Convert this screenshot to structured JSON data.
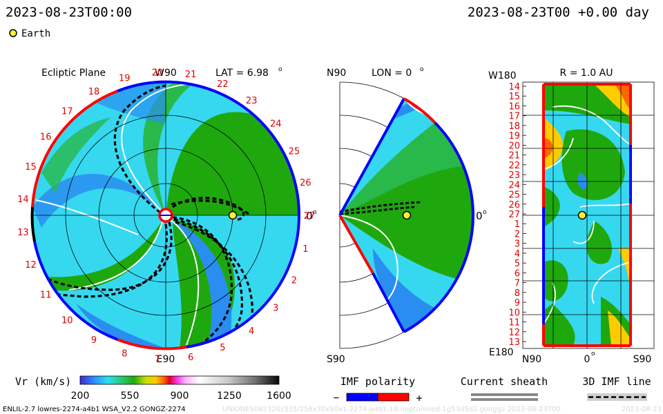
{
  "header": {
    "datetime_left": "2023-08-23T00:00",
    "datetime_right": "2023-08-23T00 +0.00 day",
    "earth_label": "Earth"
  },
  "colors": {
    "earth_marker": "#ffee33",
    "polarity_negative": "#0000ff",
    "polarity_positive": "#ff0000",
    "sheath": "#888888",
    "field_line": "#000000"
  },
  "chart_data": [
    {
      "type": "heatmap",
      "panel": "ecliptic",
      "title": "Ecliptic Plane",
      "top_label": "W90",
      "bottom_label": "E90",
      "right_label": "0",
      "lat_label": "LAT = 6.98",
      "lat_deg": 6.98,
      "carrington_labels": [
        "27",
        "1",
        "2",
        "3",
        "4",
        "5",
        "6",
        "7",
        "8",
        "9",
        "10",
        "11",
        "12",
        "13",
        "14",
        "15",
        "16",
        "17",
        "18",
        "19",
        "20",
        "21",
        "22",
        "23",
        "24",
        "25",
        "26"
      ],
      "earth": {
        "r_au": 1.0,
        "angle_deg": 0
      }
    },
    {
      "type": "heatmap",
      "panel": "meridional",
      "title": "LON = 0",
      "lon_deg": 0,
      "top_label": "N90",
      "bottom_label": "S90",
      "right_label": "0",
      "earth": {
        "r_au": 1.0,
        "lat_deg": 0
      }
    },
    {
      "type": "heatmap",
      "panel": "radial",
      "title": "R = 1.0 AU",
      "r_au": 1.0,
      "top_left_label": "W180",
      "bottom_left_label": "E180",
      "xlabels": [
        "N90",
        "0",
        "S90"
      ],
      "ylabels": [
        "14",
        "15",
        "16",
        "17",
        "18",
        "19",
        "20",
        "21",
        "22",
        "23",
        "24",
        "25",
        "26",
        "27",
        "1",
        "2",
        "3",
        "4",
        "5",
        "6",
        "7",
        "8",
        "9",
        "10",
        "11",
        "12",
        "13"
      ]
    }
  ],
  "legend": {
    "vr": {
      "label": "Vr (km/s)",
      "ticks": [
        "200",
        "550",
        "900",
        "1250",
        "1600"
      ],
      "range": [
        200,
        1600
      ]
    },
    "imf_polarity": {
      "label": "IMF polarity",
      "minus": "−",
      "plus": "+"
    },
    "current_sheath": {
      "label": "Current sheath"
    },
    "imf_line": {
      "label": "3D IMF line"
    }
  },
  "footer": {
    "model": "ENLIL-2.7 lowres-2274-a4b1 WSA_V2.2 GONGZ-2274",
    "run_id": "UNIONES082320z335/256x30x90x1-2274-a4b1.16-noptunnled-1g53d5d2.gonggz-2023-08-23T00",
    "right_stamp": "2023-08-23"
  }
}
